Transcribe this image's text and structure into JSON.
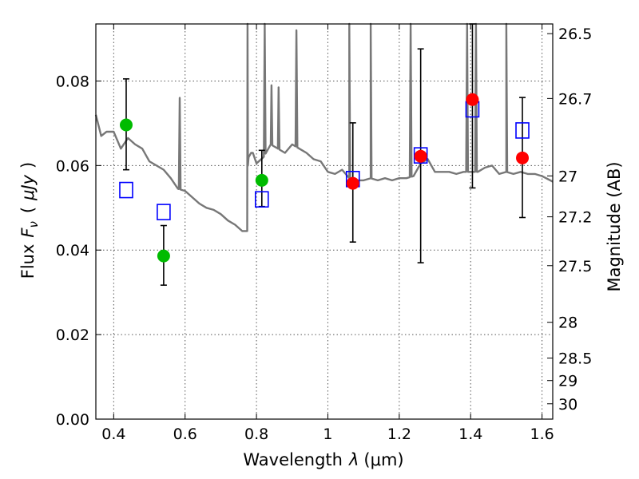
{
  "chart_data": {
    "type": "scatter",
    "xlabel": "Wavelength",
    "xlabel_symbol": "λ",
    "xlabel_unit": "(μm)",
    "ylabel_left": "Flux",
    "ylabel_symbol": "F",
    "ylabel_subscript": "ν",
    "ylabel_unit": "μJy",
    "ylabel_right": "Magnitude (AB)",
    "xlim": [
      0.35,
      1.63
    ],
    "ylim": [
      0.0,
      0.0935
    ],
    "grid": true,
    "x_ticks": [
      0.4,
      0.6,
      0.8,
      1.0,
      1.2,
      1.4,
      1.6
    ],
    "x_tick_labels": [
      "0.4",
      "0.6",
      "0.8",
      "1",
      "1.2",
      "1.4",
      "1.6"
    ],
    "y_ticks": [
      0.0,
      0.02,
      0.04,
      0.06,
      0.08
    ],
    "y_tick_labels": [
      "0.00",
      "0.02",
      "0.04",
      "0.06",
      "0.08"
    ],
    "right_ticks": [
      {
        "value": 26.5,
        "label": "26.5"
      },
      {
        "value": 26.7,
        "label": "26.7"
      },
      {
        "value": 27.0,
        "label": "27"
      },
      {
        "value": 27.2,
        "label": "27.2"
      },
      {
        "value": 27.5,
        "label": "27.5"
      },
      {
        "value": 28.0,
        "label": "28"
      },
      {
        "value": 28.5,
        "label": "28.5"
      },
      {
        "value": 29.0,
        "label": "29"
      },
      {
        "value": 30.0,
        "label": "30"
      }
    ],
    "series": [
      {
        "name": "observed (green)",
        "color": "#00bb00",
        "marker": "circle",
        "points": [
          {
            "x": 0.435,
            "y": 0.0696,
            "ylo": 0.059,
            "yhi": 0.0805
          },
          {
            "x": 0.54,
            "y": 0.0386,
            "ylo": 0.0317,
            "yhi": 0.0458
          },
          {
            "x": 0.815,
            "y": 0.0565,
            "ylo": 0.0503,
            "yhi": 0.0636
          }
        ]
      },
      {
        "name": "observed (red)",
        "color": "#ff0000",
        "marker": "circle",
        "points": [
          {
            "x": 1.07,
            "y": 0.0558,
            "ylo": 0.0419,
            "yhi": 0.0701
          },
          {
            "x": 1.26,
            "y": 0.0622,
            "ylo": 0.037,
            "yhi": 0.0876
          },
          {
            "x": 1.405,
            "y": 0.0756,
            "ylo": 0.0547,
            "yhi": 0.0935
          },
          {
            "x": 1.545,
            "y": 0.0618,
            "ylo": 0.0477,
            "yhi": 0.0761
          }
        ]
      },
      {
        "name": "model photometry",
        "color": "#0000ff",
        "marker": "square-open",
        "points": [
          {
            "x": 0.435,
            "y": 0.0542
          },
          {
            "x": 0.54,
            "y": 0.049
          },
          {
            "x": 0.815,
            "y": 0.052
          },
          {
            "x": 1.07,
            "y": 0.0568
          },
          {
            "x": 1.26,
            "y": 0.0624
          },
          {
            "x": 1.405,
            "y": 0.0733
          },
          {
            "x": 1.545,
            "y": 0.0683
          }
        ]
      },
      {
        "name": "model spectrum",
        "color": "#777777",
        "marker": "line",
        "x": [
          0.35,
          0.365,
          0.38,
          0.4,
          0.42,
          0.44,
          0.46,
          0.48,
          0.5,
          0.52,
          0.54,
          0.56,
          0.58,
          0.6,
          0.62,
          0.64,
          0.66,
          0.68,
          0.7,
          0.72,
          0.74,
          0.76,
          0.774,
          0.776,
          0.778,
          0.785,
          0.79,
          0.8,
          0.82,
          0.84,
          0.86,
          0.88,
          0.9,
          0.92,
          0.94,
          0.96,
          0.98,
          1.0,
          1.02,
          1.04,
          1.06,
          1.08,
          1.1,
          1.12,
          1.14,
          1.16,
          1.18,
          1.2,
          1.22,
          1.24,
          1.26,
          1.28,
          1.3,
          1.32,
          1.34,
          1.36,
          1.38,
          1.4,
          1.42,
          1.44,
          1.46,
          1.48,
          1.5,
          1.52,
          1.54,
          1.56,
          1.58,
          1.6,
          1.63
        ],
        "y": [
          0.072,
          0.067,
          0.068,
          0.068,
          0.064,
          0.0665,
          0.065,
          0.064,
          0.061,
          0.06,
          0.059,
          0.057,
          0.0545,
          0.054,
          0.0525,
          0.051,
          0.05,
          0.0495,
          0.0485,
          0.047,
          0.046,
          0.0445,
          0.0445,
          0.06,
          0.062,
          0.063,
          0.063,
          0.0605,
          0.062,
          0.065,
          0.064,
          0.063,
          0.065,
          0.064,
          0.063,
          0.0615,
          0.061,
          0.0585,
          0.058,
          0.059,
          0.057,
          0.0565,
          0.0565,
          0.057,
          0.0565,
          0.057,
          0.0565,
          0.057,
          0.057,
          0.0575,
          0.0605,
          0.0615,
          0.0585,
          0.0585,
          0.0585,
          0.058,
          0.0585,
          0.0585,
          0.0585,
          0.0595,
          0.06,
          0.058,
          0.0585,
          0.058,
          0.0585,
          0.058,
          0.058,
          0.0575,
          0.0562
        ],
        "spikes": [
          {
            "x": 0.585,
            "y": 0.076
          },
          {
            "x": 0.775,
            "y": 0.0935
          },
          {
            "x": 0.823,
            "y": 0.0935
          },
          {
            "x": 0.842,
            "y": 0.079
          },
          {
            "x": 0.862,
            "y": 0.0785
          },
          {
            "x": 0.912,
            "y": 0.092
          },
          {
            "x": 1.06,
            "y": 0.0935
          },
          {
            "x": 1.12,
            "y": 0.0935
          },
          {
            "x": 1.232,
            "y": 0.0935
          },
          {
            "x": 1.39,
            "y": 0.0935
          },
          {
            "x": 1.415,
            "y": 0.0935
          },
          {
            "x": 1.5,
            "y": 0.0935
          }
        ]
      }
    ]
  }
}
